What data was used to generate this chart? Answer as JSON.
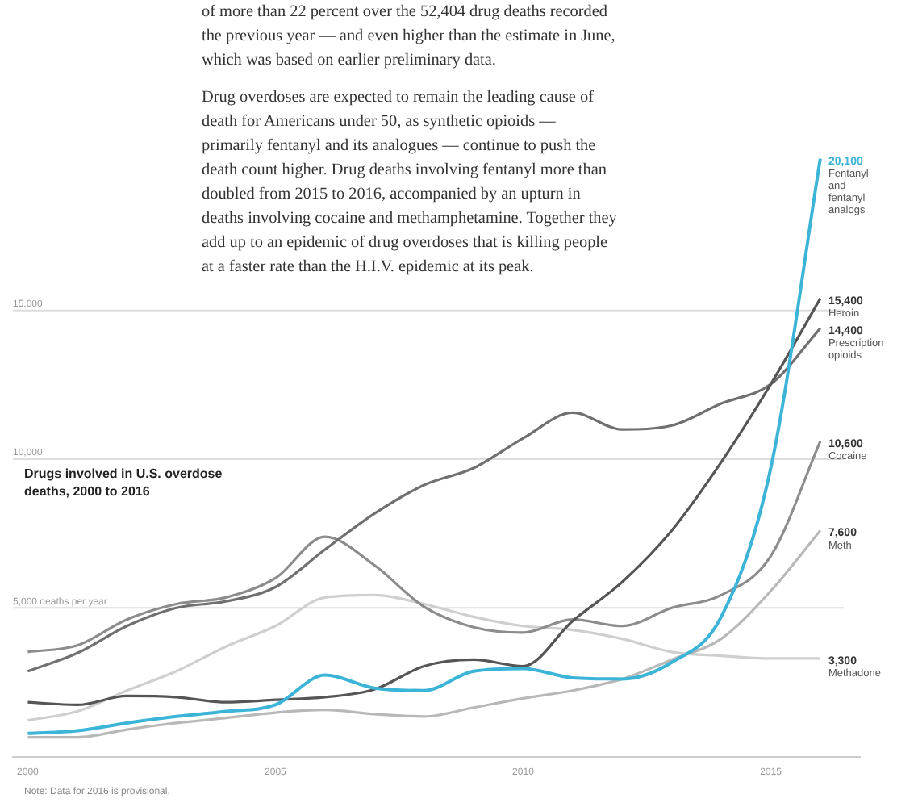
{
  "chart_data": {
    "type": "line",
    "title": "Drugs involved in U.S. overdose deaths, 2000 to 2016",
    "x": [
      2000,
      2001,
      2002,
      2003,
      2004,
      2005,
      2006,
      2007,
      2008,
      2009,
      2010,
      2011,
      2012,
      2013,
      2014,
      2015,
      2016
    ],
    "xlim": [
      1999.7,
      2016.8
    ],
    "xticks": [
      2000,
      2005,
      2010,
      2015
    ],
    "grid": false,
    "legend": false,
    "marker": "none",
    "line_style": "solid",
    "series": [
      {
        "name": "Fentanyl and fentanyl analogs",
        "color": "#3cb4d8",
        "values": [
          780,
          870,
          1130,
          1350,
          1520,
          1740,
          2740,
          2300,
          2220,
          2870,
          2960,
          2650,
          2610,
          3170,
          4700,
          9700,
          20100
        ],
        "value_labels": [
          null,
          null,
          null,
          null,
          null,
          null,
          null,
          null,
          null,
          null,
          null,
          null,
          null,
          null,
          null,
          null,
          "20,100"
        ]
      },
      {
        "name": "Heroin",
        "color": "#555555",
        "values": [
          1830,
          1740,
          2040,
          2000,
          1830,
          1910,
          2000,
          2260,
          3040,
          3260,
          3040,
          4560,
          5870,
          7600,
          9900,
          12520,
          15400
        ],
        "value_labels": [
          null,
          null,
          null,
          null,
          null,
          null,
          null,
          null,
          null,
          null,
          null,
          null,
          null,
          null,
          null,
          null,
          "15,400"
        ]
      },
      {
        "name": "Prescription opioids",
        "color": "#707070",
        "values": [
          2870,
          3480,
          4390,
          5000,
          5220,
          5700,
          6960,
          8170,
          9130,
          9700,
          10700,
          11560,
          11000,
          11130,
          11870,
          12520,
          14400
        ],
        "value_labels": [
          null,
          null,
          null,
          null,
          null,
          null,
          null,
          null,
          null,
          null,
          null,
          null,
          null,
          null,
          null,
          null,
          "14,400"
        ]
      },
      {
        "name": "Cocaine",
        "color": "#8c8c8c",
        "values": [
          3520,
          3740,
          4610,
          5130,
          5350,
          6000,
          7390,
          6430,
          5040,
          4350,
          4170,
          4610,
          4390,
          5000,
          5430,
          6740,
          10600
        ],
        "value_labels": [
          null,
          null,
          null,
          null,
          null,
          null,
          null,
          null,
          null,
          null,
          null,
          null,
          null,
          null,
          null,
          null,
          "10,600"
        ]
      },
      {
        "name": "Meth",
        "color": "#b8b8b8",
        "values": [
          650,
          650,
          910,
          1130,
          1300,
          1480,
          1570,
          1430,
          1350,
          1650,
          1960,
          2220,
          2610,
          3260,
          3960,
          5570,
          7600
        ],
        "value_labels": [
          null,
          null,
          null,
          null,
          null,
          null,
          null,
          null,
          null,
          null,
          null,
          null,
          null,
          null,
          null,
          null,
          "7,600"
        ]
      },
      {
        "name": "Methadone",
        "color": "#cfcfcf",
        "values": [
          1220,
          1520,
          2220,
          2870,
          3700,
          4390,
          5350,
          5430,
          5130,
          4700,
          4390,
          4260,
          3960,
          3520,
          3390,
          3300,
          3300
        ],
        "value_labels": [
          null,
          null,
          null,
          null,
          null,
          null,
          null,
          null,
          null,
          null,
          null,
          null,
          null,
          null,
          null,
          null,
          "3,300"
        ]
      }
    ],
    "ref_lines": [
      {
        "axis": "y",
        "value": 5000,
        "label": "5,000 deaths per year",
        "color": "#dddddd"
      },
      {
        "axis": "y",
        "value": 10000,
        "label": "10,000",
        "color": "#dddddd"
      },
      {
        "axis": "y",
        "value": 15000,
        "label": "15,000",
        "color": "#dddddd"
      }
    ],
    "annotations": [
      "of more than 22 percent over the 52,404 drug deaths recorded the previous year — and even higher than the estimate in June, which was based on earlier preliminary data.",
      "Drug overdoses are expected to remain the leading cause of death for Americans under 50, as synthetic opioids — primarily fentanyl and its analogues — continue to push the death count higher. Drug deaths involving fentanyl more than doubled from 2015 to 2016, accompanied by an upturn in deaths involving cocaine and methamphetamine. Together they add up to an epidemic of drug overdoses that is killing people at a faster rate than the H.I.V. epidemic at its peak.",
      "Note: Data for 2016 is provisional."
    ]
  }
}
